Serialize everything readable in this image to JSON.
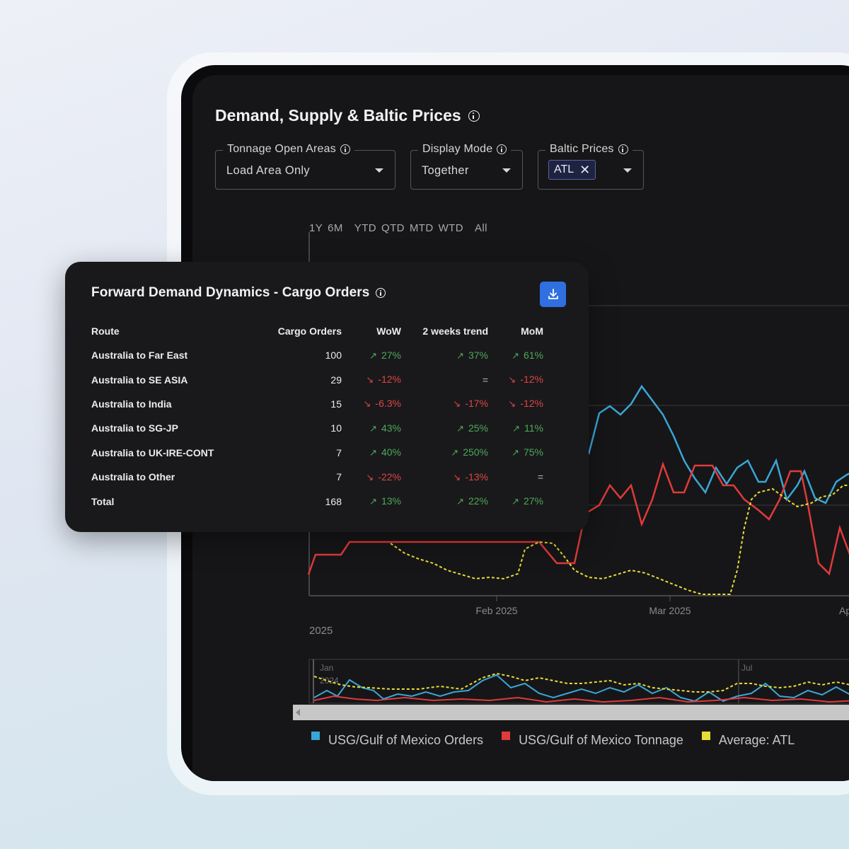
{
  "main": {
    "title": "Demand, Supply & Baltic Prices",
    "filters": {
      "tonnage_label": "Tonnage Open Areas",
      "tonnage_value": "Load Area Only",
      "display_label": "Display Mode",
      "display_value": "Together",
      "baltic_label": "Baltic Prices",
      "baltic_chip": "ATL"
    },
    "range_tabs": [
      "1Y",
      "6M",
      "YTD",
      "QTD",
      "MTD",
      "WTD",
      "All"
    ],
    "x_ticks": [
      "Feb 2025",
      "Mar 2025",
      "Ap"
    ],
    "year_label": "2025",
    "navigator_labels": [
      "Jan",
      "2024",
      "Jul"
    ],
    "legend": [
      {
        "label": "USG/Gulf of Mexico Orders",
        "color": "#3aa6d6"
      },
      {
        "label": "USG/Gulf of Mexico Tonnage",
        "color": "#e03a3a"
      },
      {
        "label": "Average: ATL",
        "color": "#e8dc36"
      }
    ]
  },
  "card": {
    "title": "Forward Demand Dynamics - Cargo Orders",
    "headers": [
      "Route",
      "Cargo Orders",
      "WoW",
      "2 weeks trend",
      "MoM"
    ],
    "rows": [
      {
        "route": "Australia to Far East",
        "orders": "100",
        "wow": "27%",
        "wow_dir": "up",
        "w2": "37%",
        "w2_dir": "up",
        "mom": "61%",
        "mom_dir": "up"
      },
      {
        "route": "Australia to SE ASIA",
        "orders": "29",
        "wow": "-12%",
        "wow_dir": "down",
        "w2": "=",
        "w2_dir": "flat",
        "mom": "-12%",
        "mom_dir": "down"
      },
      {
        "route": "Australia to India",
        "orders": "15",
        "wow": "-6.3%",
        "wow_dir": "down",
        "w2": "-17%",
        "w2_dir": "down",
        "mom": "-12%",
        "mom_dir": "down"
      },
      {
        "route": "Australia to SG-JP",
        "orders": "10",
        "wow": "43%",
        "wow_dir": "up",
        "w2": "25%",
        "w2_dir": "up",
        "mom": "11%",
        "mom_dir": "up"
      },
      {
        "route": "Australia to UK-IRE-CONT",
        "orders": "7",
        "wow": "40%",
        "wow_dir": "up",
        "w2": "250%",
        "w2_dir": "up",
        "mom": "75%",
        "mom_dir": "up"
      },
      {
        "route": "Australia to Other",
        "orders": "7",
        "wow": "-22%",
        "wow_dir": "down",
        "w2": "-13%",
        "w2_dir": "down",
        "mom": "=",
        "mom_dir": "flat"
      },
      {
        "route": "Total",
        "orders": "168",
        "wow": "13%",
        "wow_dir": "up",
        "w2": "22%",
        "w2_dir": "up",
        "mom": "27%",
        "mom_dir": "up"
      }
    ]
  },
  "icons": {
    "info": "info-icon",
    "download": "download-icon",
    "caret": "chevron-down-icon",
    "remove": "close-icon",
    "up": "trend-up-icon",
    "down": "trend-down-icon"
  }
}
